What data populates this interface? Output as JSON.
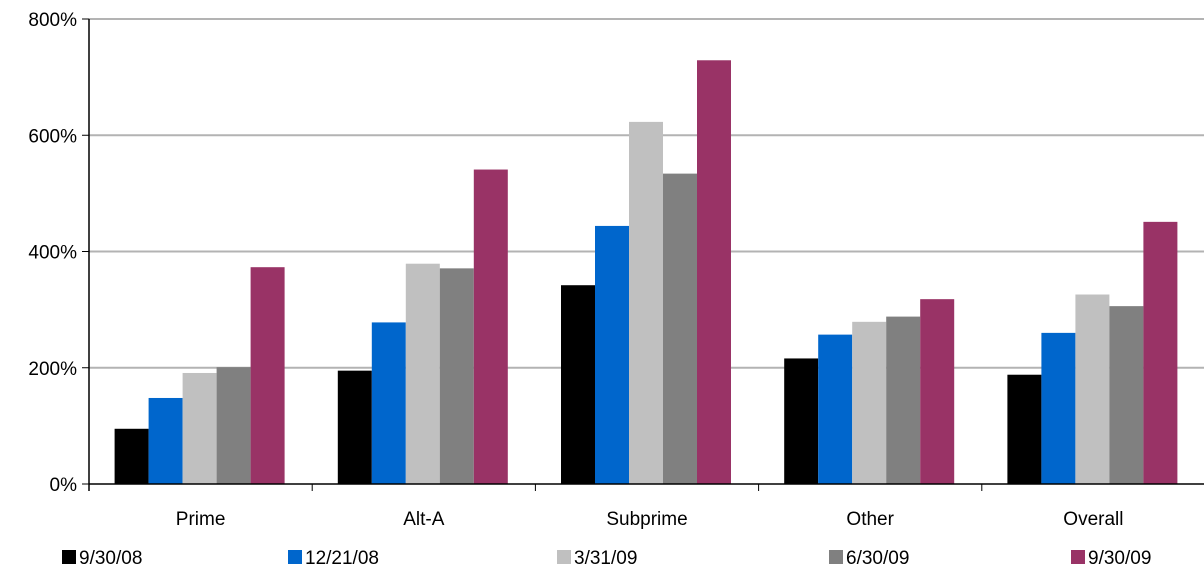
{
  "chart_data": {
    "type": "bar",
    "title": "",
    "xlabel": "",
    "ylabel": "",
    "categories": [
      "Prime",
      "Alt-A",
      "Subprime",
      "Other",
      "Overall"
    ],
    "series": [
      {
        "name": "9/30/08",
        "color": "#000000",
        "values": [
          95,
          195,
          342,
          216,
          188
        ]
      },
      {
        "name": "12/21/08",
        "color": "#0066cc",
        "values": [
          148,
          278,
          444,
          257,
          260
        ]
      },
      {
        "name": "3/31/09",
        "color": "#c0c0c0",
        "values": [
          191,
          379,
          623,
          279,
          326
        ]
      },
      {
        "name": "6/30/09",
        "color": "#808080",
        "values": [
          201,
          371,
          534,
          288,
          306
        ]
      },
      {
        "name": "9/30/09",
        "color": "#993366",
        "values": [
          373,
          541,
          729,
          318,
          451
        ]
      }
    ],
    "ylim": [
      0,
      800
    ],
    "yticks": [
      0,
      200,
      400,
      600,
      800
    ],
    "ytick_labels": [
      "0%",
      "200%",
      "400%",
      "600%",
      "800%"
    ],
    "grid": true,
    "legend_position": "bottom"
  }
}
